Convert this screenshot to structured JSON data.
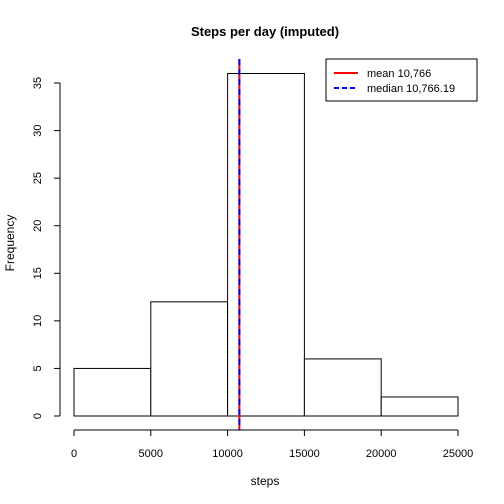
{
  "chart_data": {
    "type": "bar",
    "title": "Steps per day (imputed)",
    "xlabel": "steps",
    "ylabel": "Frequency",
    "bins": [
      {
        "start": 0,
        "end": 5000,
        "count": 5
      },
      {
        "start": 5000,
        "end": 10000,
        "count": 12
      },
      {
        "start": 10000,
        "end": 15000,
        "count": 36
      },
      {
        "start": 15000,
        "end": 20000,
        "count": 6
      },
      {
        "start": 20000,
        "end": 25000,
        "count": 2
      }
    ],
    "xlim": [
      0,
      25000
    ],
    "ylim": [
      0,
      37
    ],
    "xticks": [
      0,
      5000,
      10000,
      15000,
      20000,
      25000
    ],
    "yticks": [
      0,
      5,
      10,
      15,
      20,
      25,
      30,
      35
    ],
    "bar_fill": "#ffffff",
    "bar_stroke": "#000000",
    "vlines": [
      {
        "name": "mean",
        "value": 10766,
        "color": "#ff0000",
        "style": "solid"
      },
      {
        "name": "median",
        "value": 10766.19,
        "color": "#0000ff",
        "style": "dashed"
      }
    ],
    "legend": {
      "position": "top-right",
      "entries": [
        {
          "label": "mean 10,766",
          "color": "#ff0000",
          "style": "solid"
        },
        {
          "label": "median 10,766.19",
          "color": "#0000ff",
          "style": "dashed"
        }
      ]
    },
    "grid": false
  }
}
